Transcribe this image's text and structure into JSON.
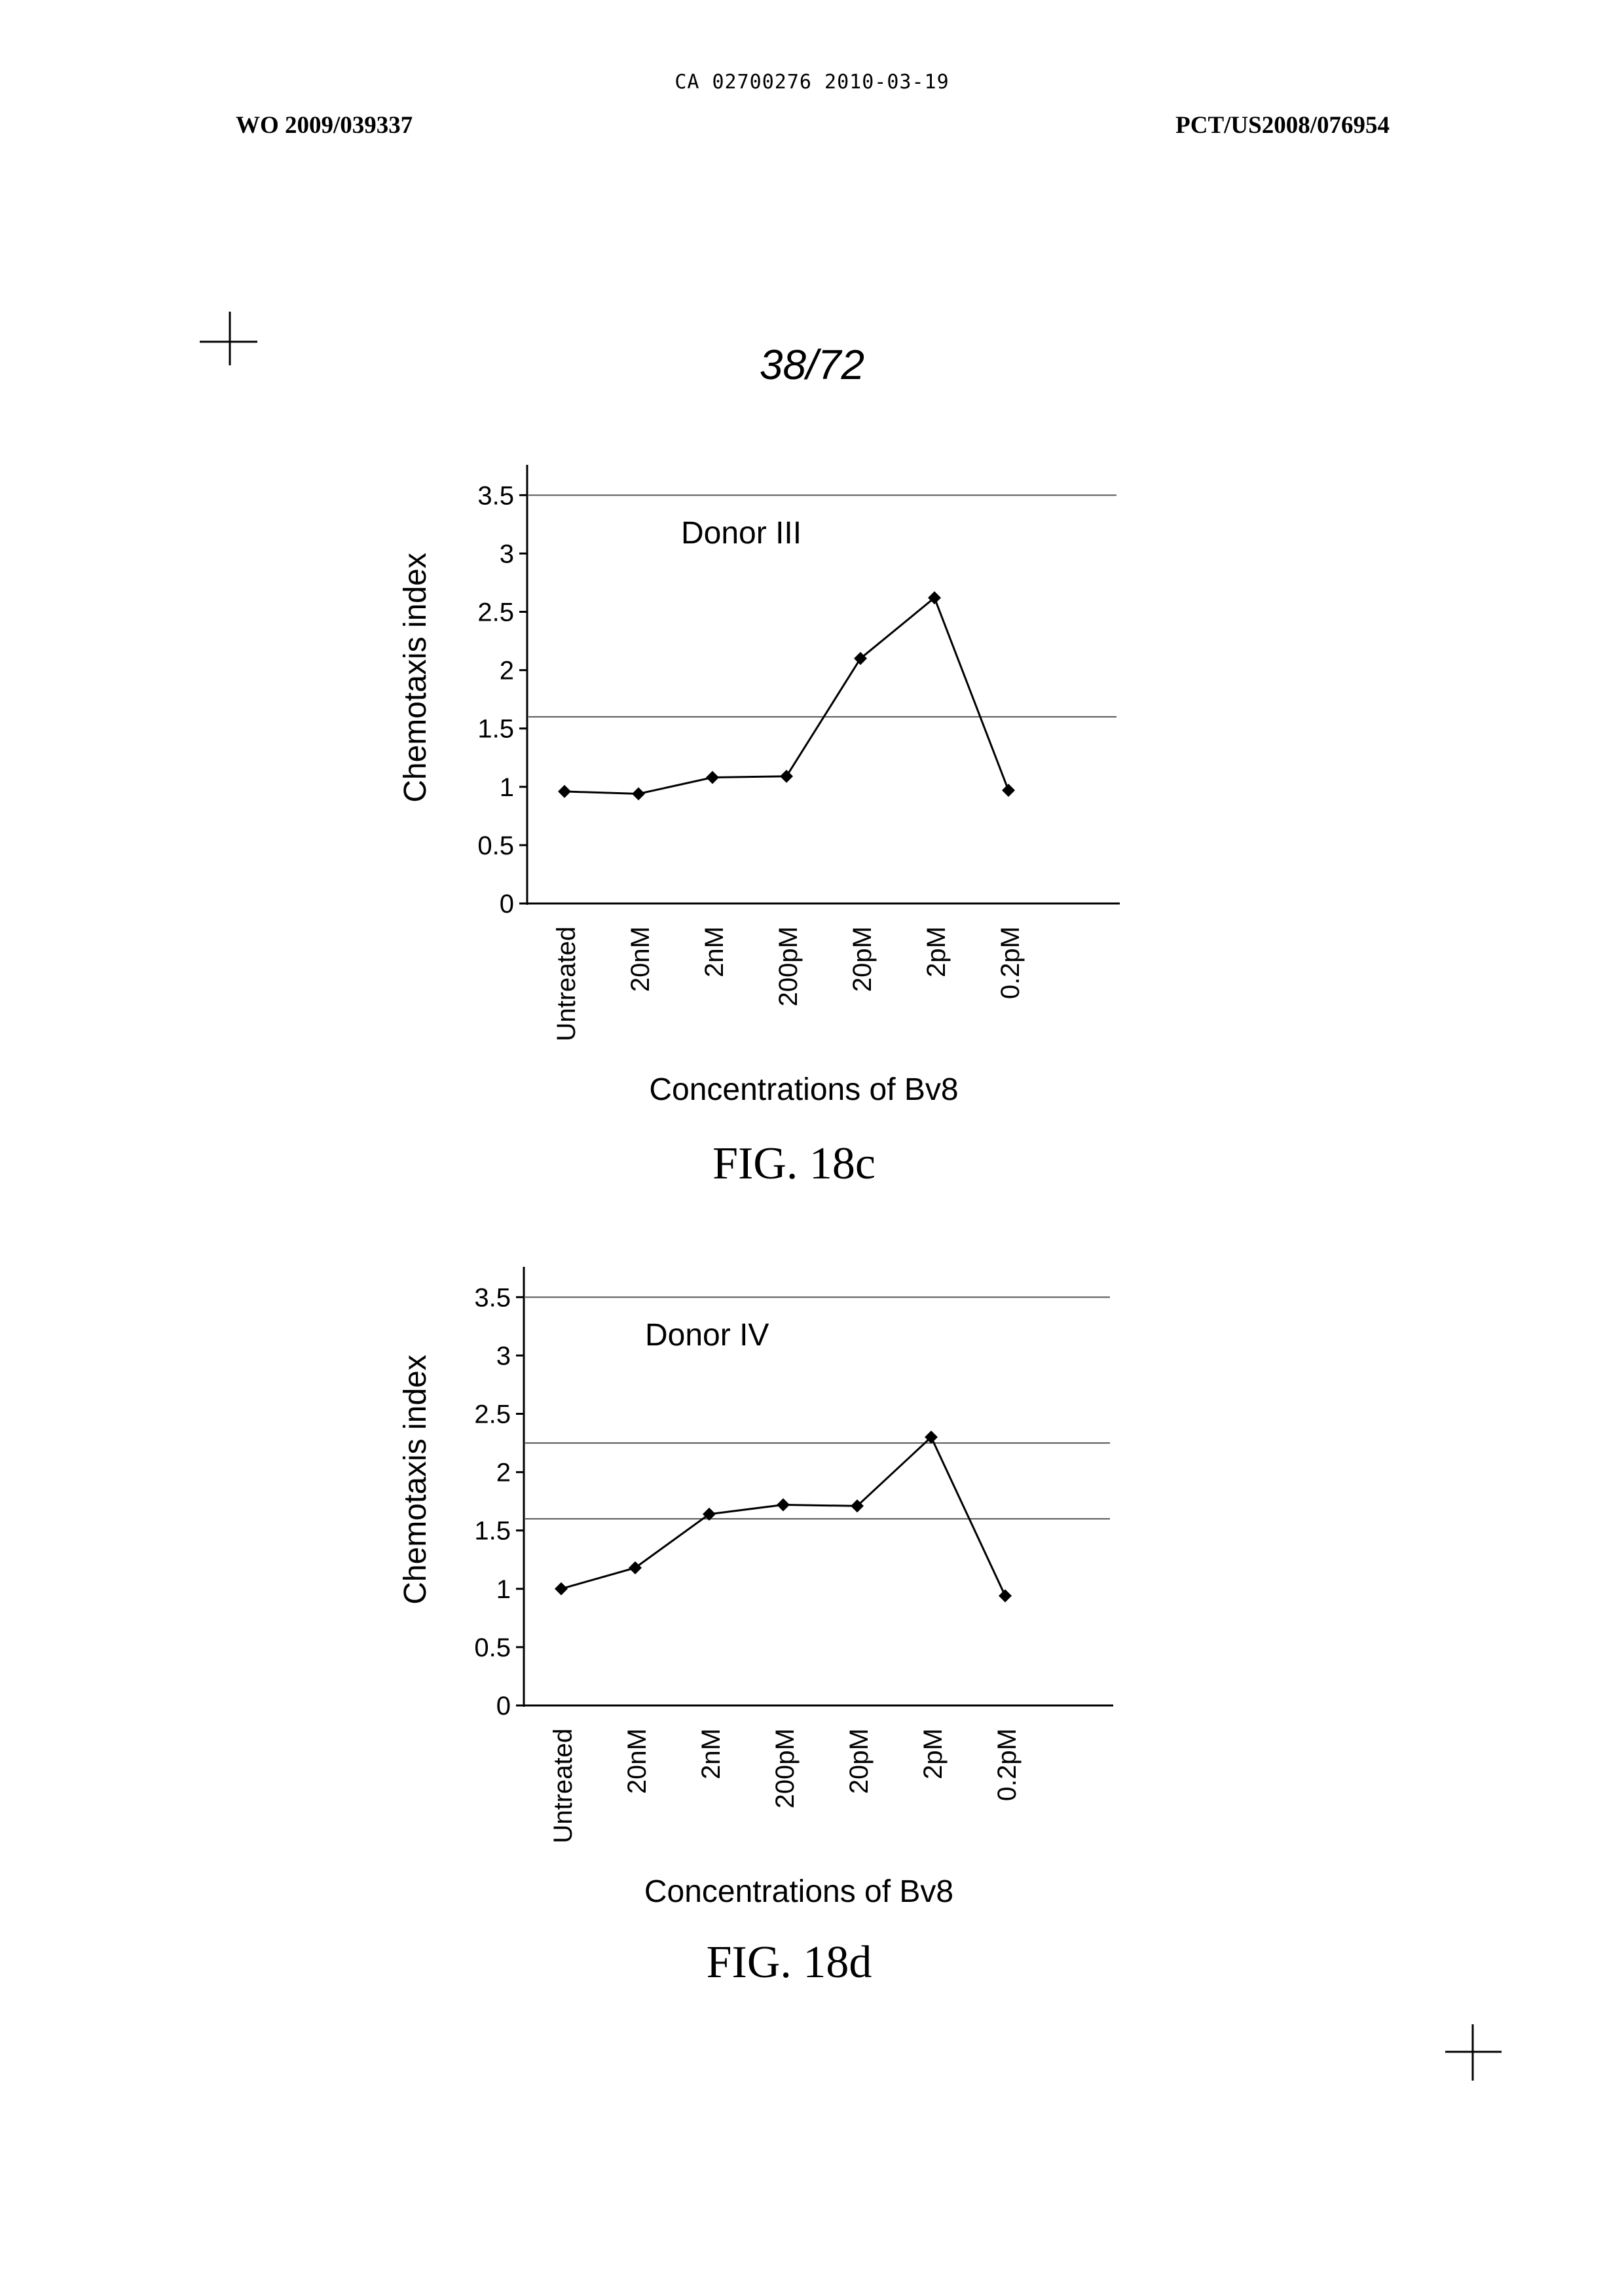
{
  "header": {
    "ca_number": "CA 02700276 2010-03-19",
    "wo_number": "WO 2009/039337",
    "pct_number": "PCT/US2008/076954"
  },
  "page_number": "38/72",
  "chart_data": [
    {
      "type": "line",
      "figure_label": "FIG. 18c",
      "annotation": "Donor III",
      "categories": [
        "Untreated",
        "20nM",
        "2nM",
        "200pM",
        "20pM",
        "2pM",
        "0.2pM"
      ],
      "values": [
        0.96,
        0.94,
        1.08,
        1.09,
        2.1,
        2.62,
        0.97
      ],
      "reference_lines": [
        3.5,
        1.6
      ],
      "xlabel": "Concentrations of Bv8",
      "ylabel": "Chemotaxis index",
      "ylim": [
        0,
        3.5
      ],
      "yticks": [
        "0",
        "0.5",
        "1",
        "1.5",
        "2",
        "2.5",
        "3",
        "3.5"
      ],
      "grid": false,
      "color": "#000000"
    },
    {
      "type": "line",
      "figure_label": "FIG. 18d",
      "annotation": "Donor IV",
      "categories": [
        "Untreated",
        "20nM",
        "2nM",
        "200pM",
        "20pM",
        "2pM",
        "0.2pM"
      ],
      "values": [
        1.0,
        1.18,
        1.64,
        1.72,
        1.71,
        2.3,
        0.94
      ],
      "reference_lines": [
        3.5,
        2.25,
        1.6
      ],
      "xlabel": "Concentrations of Bv8",
      "ylabel": "Chemotaxis index",
      "ylim": [
        0,
        3.5
      ],
      "yticks": [
        "0",
        "0.5",
        "1",
        "1.5",
        "2",
        "2.5",
        "3",
        "3.5"
      ],
      "grid": false,
      "color": "#000000"
    }
  ]
}
